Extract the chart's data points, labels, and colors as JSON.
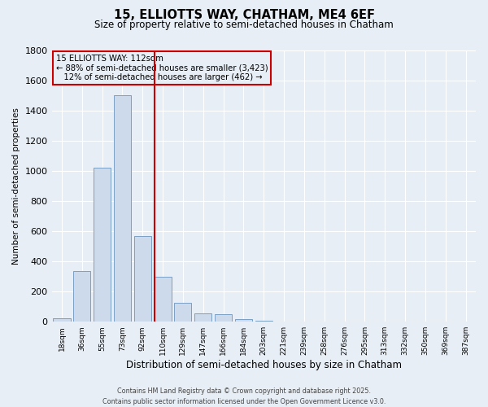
{
  "title": "15, ELLIOTTS WAY, CHATHAM, ME4 6EF",
  "subtitle": "Size of property relative to semi-detached houses in Chatham",
  "xlabel": "Distribution of semi-detached houses by size in Chatham",
  "ylabel": "Number of semi-detached properties",
  "categories": [
    "18sqm",
    "36sqm",
    "55sqm",
    "73sqm",
    "92sqm",
    "110sqm",
    "129sqm",
    "147sqm",
    "166sqm",
    "184sqm",
    "203sqm",
    "221sqm",
    "239sqm",
    "258sqm",
    "276sqm",
    "295sqm",
    "313sqm",
    "332sqm",
    "350sqm",
    "369sqm",
    "387sqm"
  ],
  "values": [
    25,
    335,
    1020,
    1500,
    570,
    300,
    125,
    55,
    50,
    20,
    5,
    0,
    0,
    0,
    0,
    0,
    0,
    0,
    0,
    0,
    0
  ],
  "bar_color": "#cddaeb",
  "bar_edge_color": "#7a9fc4",
  "vline_color": "#cc0000",
  "vline_index": 5,
  "annotation_line1": "15 ELLIOTTS WAY: 112sqm",
  "annotation_line2": "← 88% of semi-detached houses are smaller (3,423)",
  "annotation_line3": "   12% of semi-detached houses are larger (462) →",
  "ylim_max": 1800,
  "ytick_interval": 200,
  "background_color": "#e8eef5",
  "grid_color": "#ffffff",
  "footer_line1": "Contains HM Land Registry data © Crown copyright and database right 2025.",
  "footer_line2": "Contains public sector information licensed under the Open Government Licence v3.0."
}
